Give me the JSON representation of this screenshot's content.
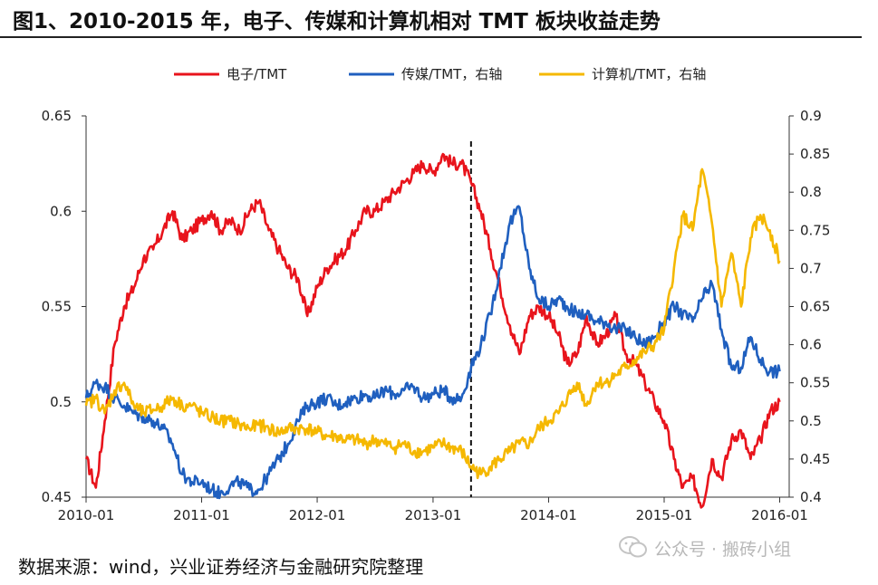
{
  "title": "图1、2010-2015 年，电子、传媒和计算机相对 TMT 板块收益走势",
  "source": "数据来源：wind，兴业证券经济与金融研究院整理",
  "watermark": "公众号 · 搬砖小组",
  "chart_data": {
    "type": "line",
    "title": "",
    "xlabel": "",
    "ylabel": "",
    "x_ticks": [
      "2010-01",
      "2011-01",
      "2012-01",
      "2013-01",
      "2014-01",
      "2015-01",
      "2016-01"
    ],
    "x_range": [
      "2010-01-01",
      "2016-01-31"
    ],
    "y_left_range": [
      0.45,
      0.65
    ],
    "y_left_ticks": [
      "0.45",
      "0.5",
      "0.55",
      "0.6",
      "0.65"
    ],
    "y_right_range": [
      0.4,
      0.9
    ],
    "y_right_ticks": [
      "0.4",
      "0.45",
      "0.5",
      "0.55",
      "0.6",
      "0.65",
      "0.7",
      "0.75",
      "0.8",
      "0.85",
      "0.9"
    ],
    "legend_position": "top",
    "vertical_marker": "2013-05",
    "series": [
      {
        "name": "电子/TMT",
        "axis": "left",
        "color": "#e8141c",
        "x": [
          "2010-01",
          "2010-02",
          "2010-03",
          "2010-04",
          "2010-05",
          "2010-06",
          "2010-07",
          "2010-08",
          "2010-09",
          "2010-10",
          "2010-11",
          "2010-12",
          "2011-01",
          "2011-02",
          "2011-03",
          "2011-04",
          "2011-05",
          "2011-06",
          "2011-07",
          "2011-08",
          "2011-09",
          "2011-10",
          "2011-11",
          "2011-12",
          "2012-01",
          "2012-02",
          "2012-03",
          "2012-04",
          "2012-05",
          "2012-06",
          "2012-07",
          "2012-08",
          "2012-09",
          "2012-10",
          "2012-11",
          "2012-12",
          "2013-01",
          "2013-02",
          "2013-03",
          "2013-04",
          "2013-05",
          "2013-06",
          "2013-07",
          "2013-08",
          "2013-09",
          "2013-10",
          "2013-11",
          "2013-12",
          "2014-01",
          "2014-02",
          "2014-03",
          "2014-04",
          "2014-05",
          "2014-06",
          "2014-07",
          "2014-08",
          "2014-09",
          "2014-10",
          "2014-11",
          "2014-12",
          "2015-01",
          "2015-02",
          "2015-03",
          "2015-04",
          "2015-05",
          "2015-06",
          "2015-07",
          "2015-08",
          "2015-09",
          "2015-10",
          "2015-11",
          "2015-12",
          "2016-01"
        ],
        "values": [
          0.47,
          0.455,
          0.49,
          0.53,
          0.55,
          0.56,
          0.575,
          0.58,
          0.59,
          0.6,
          0.585,
          0.59,
          0.595,
          0.6,
          0.59,
          0.595,
          0.59,
          0.6,
          0.605,
          0.59,
          0.58,
          0.57,
          0.565,
          0.545,
          0.56,
          0.57,
          0.575,
          0.58,
          0.59,
          0.6,
          0.6,
          0.605,
          0.61,
          0.615,
          0.62,
          0.625,
          0.62,
          0.63,
          0.625,
          0.625,
          0.615,
          0.6,
          0.58,
          0.56,
          0.54,
          0.525,
          0.545,
          0.55,
          0.545,
          0.535,
          0.52,
          0.525,
          0.545,
          0.53,
          0.535,
          0.545,
          0.525,
          0.52,
          0.51,
          0.5,
          0.49,
          0.47,
          0.455,
          0.46,
          0.445,
          0.47,
          0.46,
          0.48,
          0.485,
          0.47,
          0.48,
          0.495,
          0.5
        ]
      },
      {
        "name": "传媒/TMT，右轴",
        "axis": "right",
        "color": "#1f5fbf",
        "x": [
          "2010-01",
          "2010-02",
          "2010-03",
          "2010-04",
          "2010-05",
          "2010-06",
          "2010-07",
          "2010-08",
          "2010-09",
          "2010-10",
          "2010-11",
          "2010-12",
          "2011-01",
          "2011-02",
          "2011-03",
          "2011-04",
          "2011-05",
          "2011-06",
          "2011-07",
          "2011-08",
          "2011-09",
          "2011-10",
          "2011-11",
          "2011-12",
          "2012-01",
          "2012-02",
          "2012-03",
          "2012-04",
          "2012-05",
          "2012-06",
          "2012-07",
          "2012-08",
          "2012-09",
          "2012-10",
          "2012-11",
          "2012-12",
          "2013-01",
          "2013-02",
          "2013-03",
          "2013-04",
          "2013-05",
          "2013-06",
          "2013-07",
          "2013-08",
          "2013-09",
          "2013-10",
          "2013-11",
          "2013-12",
          "2014-01",
          "2014-02",
          "2014-03",
          "2014-04",
          "2014-05",
          "2014-06",
          "2014-07",
          "2014-08",
          "2014-09",
          "2014-10",
          "2014-11",
          "2014-12",
          "2015-01",
          "2015-02",
          "2015-03",
          "2015-04",
          "2015-05",
          "2015-06",
          "2015-07",
          "2015-08",
          "2015-09",
          "2015-10",
          "2015-11",
          "2015-12",
          "2016-01"
        ],
        "values": [
          0.53,
          0.55,
          0.545,
          0.53,
          0.52,
          0.51,
          0.505,
          0.5,
          0.49,
          0.47,
          0.43,
          0.42,
          0.42,
          0.41,
          0.405,
          0.415,
          0.42,
          0.41,
          0.41,
          0.43,
          0.45,
          0.47,
          0.5,
          0.52,
          0.525,
          0.53,
          0.52,
          0.525,
          0.53,
          0.535,
          0.53,
          0.54,
          0.535,
          0.54,
          0.545,
          0.53,
          0.535,
          0.54,
          0.53,
          0.53,
          0.57,
          0.6,
          0.64,
          0.7,
          0.76,
          0.78,
          0.7,
          0.66,
          0.65,
          0.66,
          0.65,
          0.64,
          0.64,
          0.63,
          0.63,
          0.62,
          0.62,
          0.61,
          0.6,
          0.61,
          0.63,
          0.65,
          0.64,
          0.63,
          0.66,
          0.68,
          0.62,
          0.57,
          0.57,
          0.61,
          0.58,
          0.565,
          0.565
        ]
      },
      {
        "name": "计算机/TMT，右轴",
        "axis": "right",
        "color": "#f5b800",
        "x": [
          "2010-01",
          "2010-02",
          "2010-03",
          "2010-04",
          "2010-05",
          "2010-06",
          "2010-07",
          "2010-08",
          "2010-09",
          "2010-10",
          "2010-11",
          "2010-12",
          "2011-01",
          "2011-02",
          "2011-03",
          "2011-04",
          "2011-05",
          "2011-06",
          "2011-07",
          "2011-08",
          "2011-09",
          "2011-10",
          "2011-11",
          "2011-12",
          "2012-01",
          "2012-02",
          "2012-03",
          "2012-04",
          "2012-05",
          "2012-06",
          "2012-07",
          "2012-08",
          "2012-09",
          "2012-10",
          "2012-11",
          "2012-12",
          "2013-01",
          "2013-02",
          "2013-03",
          "2013-04",
          "2013-05",
          "2013-06",
          "2013-07",
          "2013-08",
          "2013-09",
          "2013-10",
          "2013-11",
          "2013-12",
          "2014-01",
          "2014-02",
          "2014-03",
          "2014-04",
          "2014-05",
          "2014-06",
          "2014-07",
          "2014-08",
          "2014-09",
          "2014-10",
          "2014-11",
          "2014-12",
          "2015-01",
          "2015-02",
          "2015-03",
          "2015-04",
          "2015-05",
          "2015-06",
          "2015-07",
          "2015-08",
          "2015-09",
          "2015-10",
          "2015-11",
          "2015-12",
          "2016-01"
        ],
        "values": [
          0.52,
          0.53,
          0.51,
          0.54,
          0.55,
          0.52,
          0.51,
          0.515,
          0.52,
          0.53,
          0.52,
          0.52,
          0.51,
          0.505,
          0.5,
          0.5,
          0.495,
          0.49,
          0.495,
          0.49,
          0.485,
          0.49,
          0.49,
          0.49,
          0.485,
          0.48,
          0.48,
          0.475,
          0.475,
          0.47,
          0.475,
          0.47,
          0.465,
          0.47,
          0.46,
          0.46,
          0.465,
          0.47,
          0.465,
          0.46,
          0.44,
          0.43,
          0.44,
          0.45,
          0.46,
          0.47,
          0.47,
          0.49,
          0.5,
          0.51,
          0.53,
          0.55,
          0.52,
          0.55,
          0.55,
          0.56,
          0.57,
          0.58,
          0.59,
          0.6,
          0.62,
          0.7,
          0.77,
          0.75,
          0.83,
          0.76,
          0.65,
          0.72,
          0.65,
          0.74,
          0.77,
          0.75,
          0.71
        ]
      }
    ]
  }
}
